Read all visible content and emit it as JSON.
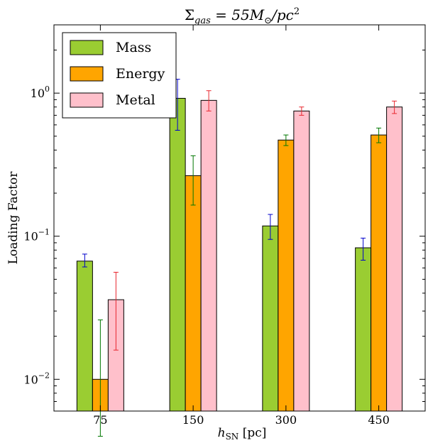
{
  "chart_data": {
    "type": "bar",
    "title": "Σ",
    "title_sub": "gas",
    "title_rest": " = 55M",
    "title_sun": "⊙",
    "title_end": "/pc",
    "title_sup": "2",
    "xlabel": "h",
    "xlabel_sub": "SN",
    "xlabel_unit": " [pc]",
    "ylabel": "Loading Factor",
    "y_scale": "log",
    "ylim": [
      0.006,
      3.0
    ],
    "y_ticks": [
      {
        "value": 0.01,
        "base": "10",
        "exp": "−2"
      },
      {
        "value": 0.1,
        "base": "10",
        "exp": "−1"
      },
      {
        "value": 1,
        "base": "10",
        "exp": "0"
      }
    ],
    "categories": [
      "75",
      "150",
      "300",
      "450"
    ],
    "legend_position": "top-left",
    "series": [
      {
        "name": "Mass",
        "color": "#9acd32",
        "error_color": "#0000cc",
        "values": [
          0.067,
          0.92,
          0.118,
          0.083
        ],
        "err_low": [
          0.061,
          0.55,
          0.095,
          0.068
        ],
        "err_high": [
          0.075,
          1.25,
          0.142,
          0.097
        ]
      },
      {
        "name": "Energy",
        "color": "#ffa500",
        "error_color": "#007700",
        "values": [
          0.01,
          0.265,
          0.47,
          0.51
        ],
        "err_low": [
          0.004,
          0.165,
          0.43,
          0.45
        ],
        "err_high": [
          0.026,
          0.365,
          0.51,
          0.57
        ]
      },
      {
        "name": "Metal",
        "color": "#ffc0cb",
        "error_color": "#e8262e",
        "values": [
          0.036,
          0.89,
          0.75,
          0.8
        ],
        "err_low": [
          0.016,
          0.75,
          0.7,
          0.72
        ],
        "err_high": [
          0.056,
          1.04,
          0.8,
          0.88
        ]
      }
    ]
  }
}
